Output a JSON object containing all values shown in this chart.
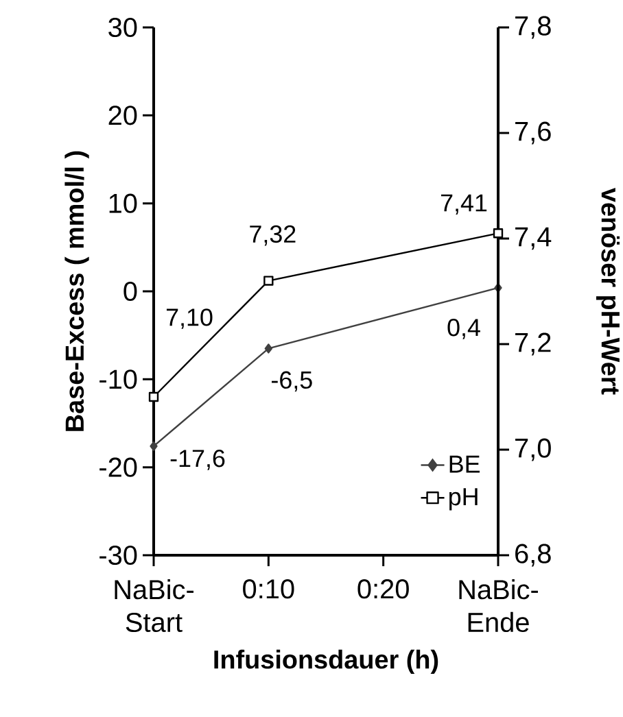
{
  "chart_data": {
    "type": "line",
    "xlabel": "Infusionsdauer (h)",
    "ylabel": "Base-Excess ( mmol/l )",
    "y2label": "venöser pH-Wert",
    "categories": [
      "NaBic-Start",
      "0:10",
      "0:20",
      "NaBic-Ende"
    ],
    "series": [
      {
        "name": "BE",
        "color": "#404040",
        "marker": "diamond",
        "values": [
          -17.6,
          -6.5,
          null,
          0.4
        ],
        "value_labels": [
          "-17,6",
          "-6,5",
          null,
          "0,4"
        ]
      },
      {
        "name": "pH",
        "color": "#000000",
        "marker": "square",
        "axis": "y2",
        "values": [
          7.1,
          7.32,
          null,
          7.41
        ],
        "value_labels": [
          "7,10",
          "7,32",
          null,
          "7,41"
        ]
      }
    ],
    "ylim": [
      -30,
      30
    ],
    "yticks": [
      -30,
      -20,
      -10,
      0,
      10,
      20,
      30
    ],
    "y2lim": [
      6.8,
      7.8
    ],
    "y2ticks": [
      {
        "value": 6.8,
        "label": "6,8"
      },
      {
        "value": 7.0,
        "label": "7,0"
      },
      {
        "value": 7.2,
        "label": "7,2"
      },
      {
        "value": 7.4,
        "label": "7,4"
      },
      {
        "value": 7.6,
        "label": "7,6"
      },
      {
        "value": 7.8,
        "label": "7,8"
      }
    ],
    "legend": "bottom right",
    "line_style": "solid"
  }
}
